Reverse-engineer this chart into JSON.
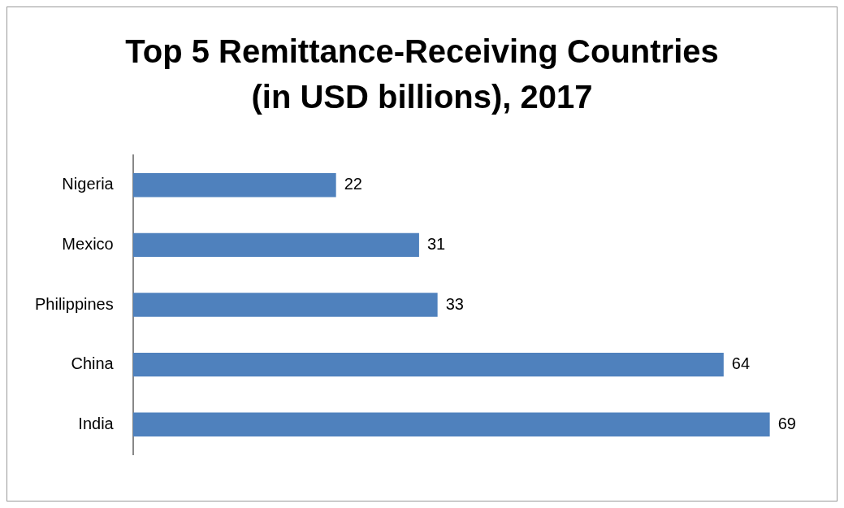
{
  "chart_data": {
    "type": "bar",
    "orientation": "horizontal",
    "title": "Top 5 Remittance-Receiving Countries (in USD billions), 2017",
    "categories": [
      "Nigeria",
      "Mexico",
      "Philippines",
      "China",
      "India"
    ],
    "values": [
      22,
      31,
      33,
      64,
      69
    ],
    "color": "#4f81bd",
    "data_labels": true,
    "legend": false
  }
}
